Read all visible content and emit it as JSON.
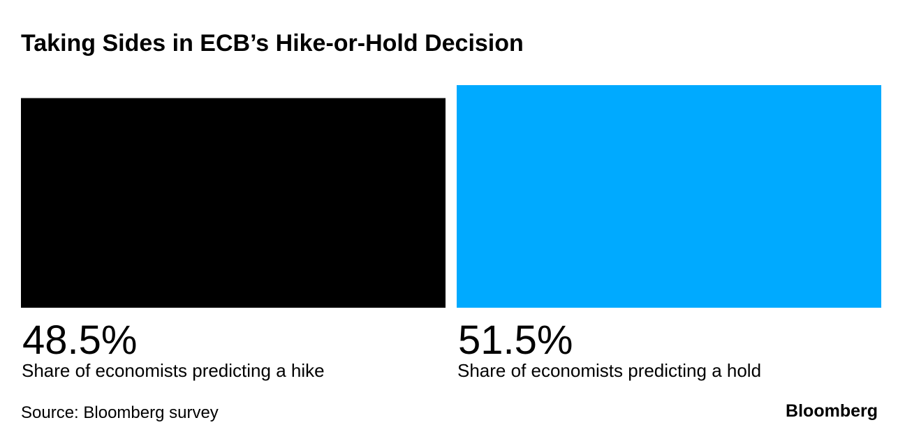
{
  "chart_data": {
    "type": "bar",
    "title": "Taking Sides in ECB’s Hike-or-Hold Decision",
    "categories": [
      "Share of economists predicting a hike",
      "Share of economists predicting a hold"
    ],
    "values": [
      48.5,
      51.5
    ],
    "value_labels": [
      "48.5%",
      "51.5%"
    ],
    "colors": [
      "#000000",
      "#00aaff"
    ],
    "source": "Source: Bloomberg survey",
    "brand": "Bloomberg"
  }
}
